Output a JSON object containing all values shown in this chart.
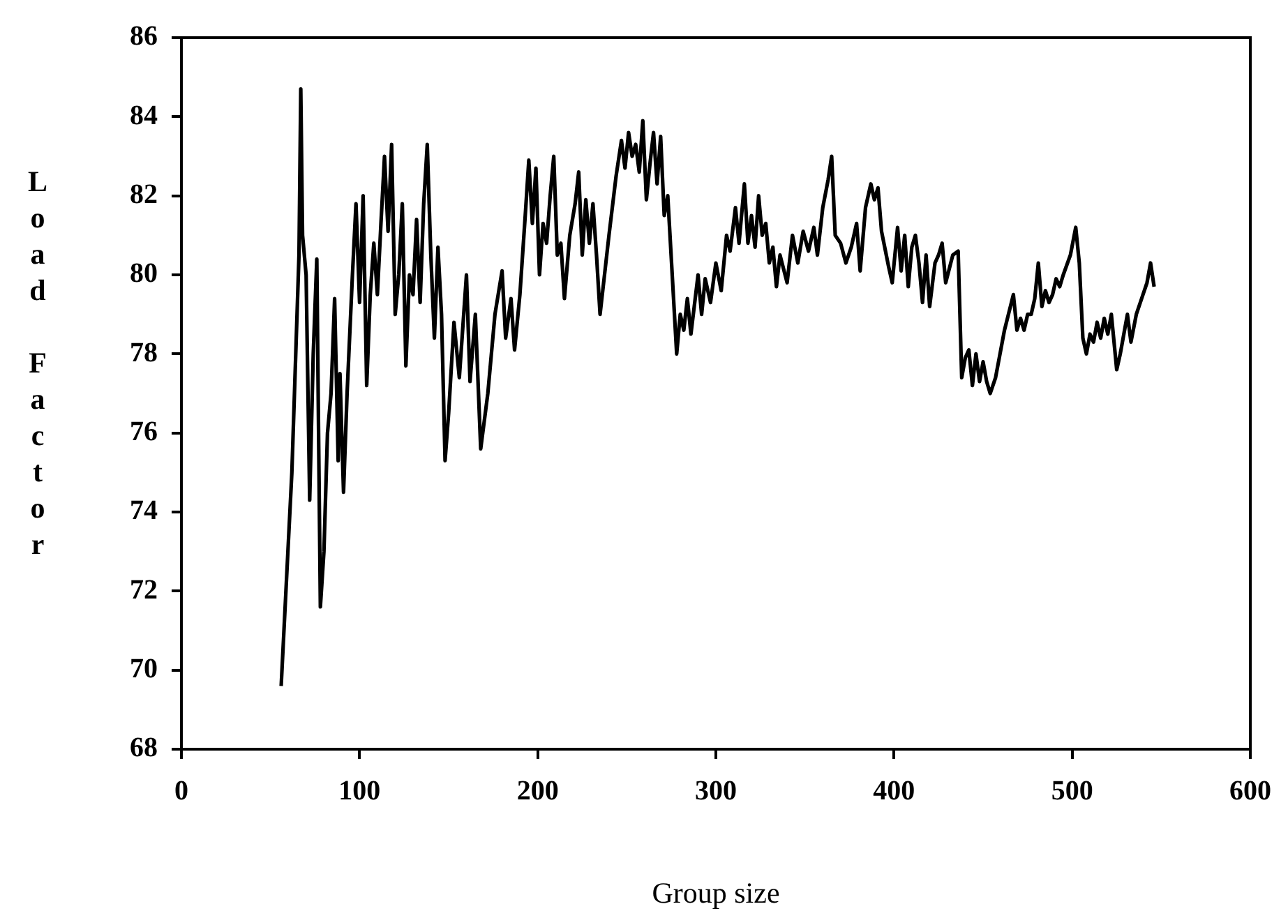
{
  "chart_data": {
    "type": "line",
    "xlabel": "Group size",
    "ylabel": "Load Factor",
    "xlim": [
      0,
      600
    ],
    "xticks": [
      0,
      100,
      200,
      300,
      400,
      500,
      600
    ],
    "ylim": [
      68,
      86
    ],
    "yticks": [
      68,
      70,
      72,
      74,
      76,
      78,
      80,
      82,
      84,
      86
    ],
    "grid": false,
    "legend": false,
    "marker": "none",
    "line_style": "solid",
    "x": [
      56,
      62,
      66,
      67,
      68,
      70,
      72,
      74,
      76,
      78,
      80,
      82,
      84,
      86,
      88,
      89,
      91,
      93,
      96,
      98,
      100,
      102,
      104,
      106,
      108,
      110,
      112,
      114,
      116,
      118,
      120,
      122,
      124,
      126,
      128,
      130,
      132,
      134,
      136,
      138,
      140,
      142,
      144,
      146,
      148,
      150,
      153,
      156,
      160,
      162,
      165,
      168,
      172,
      176,
      180,
      182,
      185,
      187,
      190,
      193,
      195,
      197,
      199,
      201,
      203,
      205,
      207,
      209,
      211,
      213,
      215,
      218,
      221,
      223,
      225,
      227,
      229,
      231,
      233,
      235,
      240,
      244,
      247,
      249,
      251,
      253,
      255,
      257,
      259,
      261,
      263,
      265,
      267,
      269,
      271,
      273,
      275,
      278,
      280,
      282,
      284,
      286,
      290,
      292,
      294,
      297,
      300,
      303,
      306,
      308,
      311,
      313,
      316,
      318,
      320,
      322,
      324,
      326,
      328,
      330,
      332,
      334,
      336,
      340,
      343,
      346,
      349,
      352,
      355,
      357,
      360,
      363,
      365,
      367,
      370,
      373,
      376,
      379,
      381,
      384,
      387,
      389,
      391,
      393,
      397,
      399,
      402,
      404,
      406,
      408,
      410,
      412,
      414,
      416,
      418,
      420,
      423,
      425,
      427,
      429,
      433,
      436,
      438,
      440,
      442,
      444,
      446,
      448,
      450,
      452,
      454,
      457,
      462,
      467,
      469,
      471,
      473,
      475,
      477,
      479,
      481,
      483,
      485,
      487,
      489,
      491,
      493,
      495,
      499,
      502,
      504,
      506,
      508,
      510,
      512,
      514,
      516,
      518,
      520,
      522,
      525,
      527,
      529,
      531,
      533,
      536,
      539,
      542,
      544,
      546
    ],
    "series": [
      {
        "color": "#000000",
        "values": [
          69.6,
          75,
          80.5,
          84.7,
          81,
          80,
          74.3,
          78,
          80.4,
          71.6,
          73,
          76,
          77,
          79.4,
          75.3,
          77.5,
          74.5,
          77,
          80,
          81.8,
          79.3,
          82,
          77.2,
          79.5,
          80.8,
          79.5,
          81.3,
          83,
          81.1,
          83.3,
          79,
          80,
          81.8,
          77.7,
          80,
          79.5,
          81.4,
          79.3,
          81.8,
          83.3,
          80.5,
          78.4,
          80.7,
          79,
          75.3,
          76.5,
          78.8,
          77.4,
          80,
          77.3,
          79,
          75.6,
          77,
          79,
          80.1,
          78.4,
          79.4,
          78.1,
          79.5,
          81.5,
          82.9,
          81.3,
          82.7,
          80,
          81.3,
          80.8,
          82,
          83,
          80.5,
          80.8,
          79.4,
          81,
          81.8,
          82.6,
          80.5,
          81.9,
          80.8,
          81.8,
          80.5,
          79,
          81,
          82.5,
          83.4,
          82.7,
          83.6,
          83,
          83.3,
          82.6,
          83.9,
          81.9,
          82.8,
          83.6,
          82.3,
          83.5,
          81.5,
          82,
          80.4,
          78,
          79,
          78.6,
          79.4,
          78.5,
          80,
          79,
          79.9,
          79.3,
          80.3,
          79.6,
          81,
          80.6,
          81.7,
          80.8,
          82.3,
          80.8,
          81.5,
          80.7,
          82,
          81,
          81.3,
          80.3,
          80.7,
          79.7,
          80.5,
          79.8,
          81,
          80.3,
          81.1,
          80.6,
          81.2,
          80.5,
          81.7,
          82.4,
          83,
          81,
          80.8,
          80.3,
          80.7,
          81.3,
          80.1,
          81.7,
          82.3,
          81.9,
          82.2,
          81.1,
          80.2,
          79.8,
          81.2,
          80.1,
          81,
          79.7,
          80.7,
          81,
          80.3,
          79.3,
          80.5,
          79.2,
          80.3,
          80.5,
          80.8,
          79.8,
          80.5,
          80.6,
          77.4,
          77.9,
          78.1,
          77.2,
          78,
          77.3,
          77.8,
          77.3,
          77,
          77.4,
          78.6,
          79.5,
          78.6,
          78.9,
          78.6,
          79,
          79,
          79.4,
          80.3,
          79.2,
          79.6,
          79.3,
          79.5,
          79.9,
          79.7,
          80,
          80.5,
          81.2,
          80.3,
          78.4,
          78,
          78.5,
          78.3,
          78.8,
          78.4,
          78.9,
          78.5,
          79,
          77.6,
          78,
          78.5,
          79,
          78.3,
          79,
          79.4,
          79.8,
          80.3,
          79.7
        ]
      }
    ]
  }
}
